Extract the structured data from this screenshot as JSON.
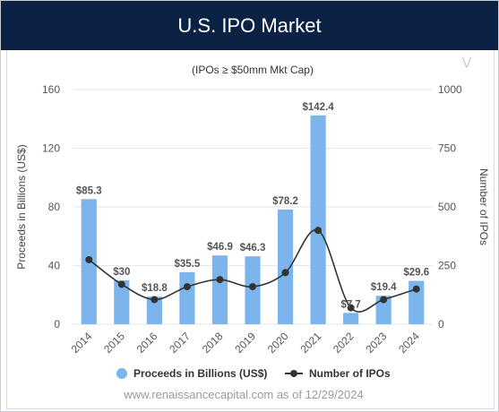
{
  "header": {
    "title": "U.S. IPO Market"
  },
  "chart_data": {
    "type": "bar",
    "title": "U.S. IPO Market",
    "subtitle": "(IPOs ≥ $50mm Mkt Cap)",
    "categories": [
      "2014",
      "2015",
      "2016",
      "2017",
      "2018",
      "2019",
      "2020",
      "2021",
      "2022",
      "2023",
      "2024"
    ],
    "series": [
      {
        "name": "Proceeds in Billions (US$)",
        "type": "bar",
        "axis": "left",
        "values": [
          85.3,
          30,
          18.8,
          35.5,
          46.9,
          46.3,
          78.2,
          142.4,
          7.7,
          19.4,
          29.6
        ],
        "labels": [
          "$85.3",
          "$30",
          "$18.8",
          "$35.5",
          "$46.9",
          "$46.3",
          "$78.2",
          "$142.4",
          "$7.7",
          "$19.4",
          "$29.6"
        ],
        "color": "#7cb5ec"
      },
      {
        "name": "Number of IPOs",
        "type": "line",
        "axis": "right",
        "values": [
          275,
          170,
          105,
          160,
          190,
          160,
          220,
          400,
          70,
          105,
          150
        ],
        "color": "#333333"
      }
    ],
    "y_left": {
      "label": "Proceeds in Billions (US$)",
      "min": 0,
      "max": 160,
      "ticks": [
        "0",
        "40",
        "80",
        "120",
        "160"
      ],
      "tick_values": [
        0,
        40,
        80,
        120,
        160
      ]
    },
    "y_right": {
      "label": "Number of IPOs",
      "min": 0,
      "max": 1000,
      "ticks": [
        "0",
        "250",
        "500",
        "750",
        "1000"
      ],
      "tick_values": [
        0,
        250,
        500,
        750,
        1000
      ]
    },
    "grid": true,
    "legend": "bottom-center",
    "footer": "www.renaissancecapital.com as of 12/29/2024"
  },
  "menu_icon": "double-chevron-down-icon"
}
